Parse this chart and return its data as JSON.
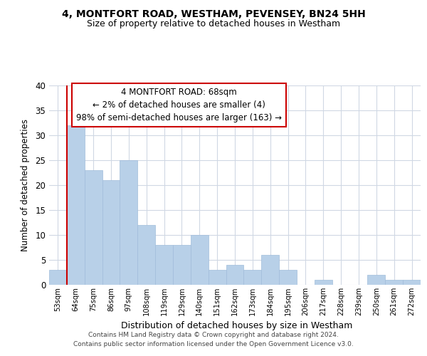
{
  "title1": "4, MONTFORT ROAD, WESTHAM, PEVENSEY, BN24 5HH",
  "title2": "Size of property relative to detached houses in Westham",
  "xlabel": "Distribution of detached houses by size in Westham",
  "ylabel": "Number of detached properties",
  "bar_labels": [
    "53sqm",
    "64sqm",
    "75sqm",
    "86sqm",
    "97sqm",
    "108sqm",
    "119sqm",
    "129sqm",
    "140sqm",
    "151sqm",
    "162sqm",
    "173sqm",
    "184sqm",
    "195sqm",
    "206sqm",
    "217sqm",
    "228sqm",
    "239sqm",
    "250sqm",
    "261sqm",
    "272sqm"
  ],
  "bar_values": [
    3,
    32,
    23,
    21,
    25,
    12,
    8,
    8,
    10,
    3,
    4,
    3,
    6,
    3,
    0,
    1,
    0,
    0,
    2,
    1,
    1
  ],
  "bar_color": "#b8d0e8",
  "highlight_color": "#cc0000",
  "ylim": [
    0,
    40
  ],
  "yticks": [
    0,
    5,
    10,
    15,
    20,
    25,
    30,
    35,
    40
  ],
  "annotation_title": "4 MONTFORT ROAD: 68sqm",
  "annotation_line1": "← 2% of detached houses are smaller (4)",
  "annotation_line2": "98% of semi-detached houses are larger (163) →",
  "annotation_box_color": "#ffffff",
  "annotation_box_edge": "#cc0000",
  "footer1": "Contains HM Land Registry data © Crown copyright and database right 2024.",
  "footer2": "Contains public sector information licensed under the Open Government Licence v3.0.",
  "background_color": "#ffffff",
  "grid_color": "#d0d8e4"
}
